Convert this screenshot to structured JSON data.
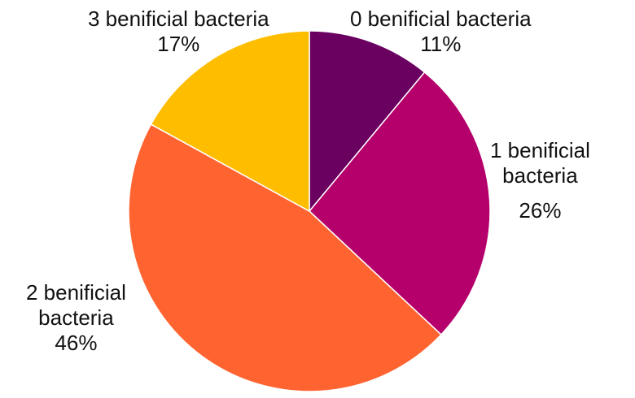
{
  "chart_data": {
    "type": "pie",
    "title": "",
    "start_angle_deg": 0,
    "direction": "clockwise",
    "slices": [
      {
        "label_lines": [
          "0 benificial bacteria"
        ],
        "percent_label": "11%",
        "value": 11,
        "color": "#6a0060"
      },
      {
        "label_lines": [
          "1 benificial",
          "bacteria"
        ],
        "percent_label": "26%",
        "value": 26,
        "color": "#b5006b"
      },
      {
        "label_lines": [
          "2 benificial",
          "bacteria"
        ],
        "percent_label": "46%",
        "value": 46,
        "color": "#ff6330"
      },
      {
        "label_lines": [
          "3 benificial bacteria"
        ],
        "percent_label": "17%",
        "value": 17,
        "color": "#ffbd00"
      }
    ]
  }
}
